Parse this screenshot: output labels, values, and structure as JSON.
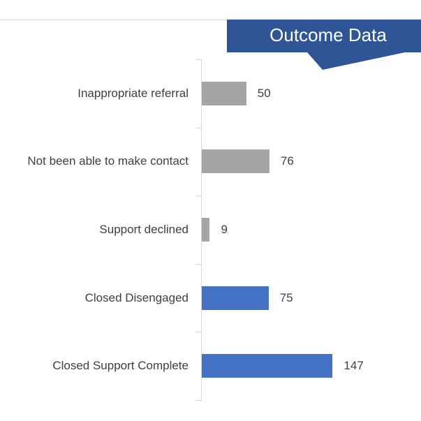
{
  "chart_data": {
    "type": "bar",
    "orientation": "horizontal",
    "title": "Outcome Data",
    "categories": [
      "Inappropriate referral",
      "Not been able to make contact",
      "Support declined",
      "Closed Disengaged",
      "Closed Support Complete"
    ],
    "values": [
      50,
      76,
      9,
      75,
      147
    ],
    "colors": [
      "#a5a5a5",
      "#a5a5a5",
      "#a5a5a5",
      "#4472c4",
      "#4472c4"
    ]
  }
}
